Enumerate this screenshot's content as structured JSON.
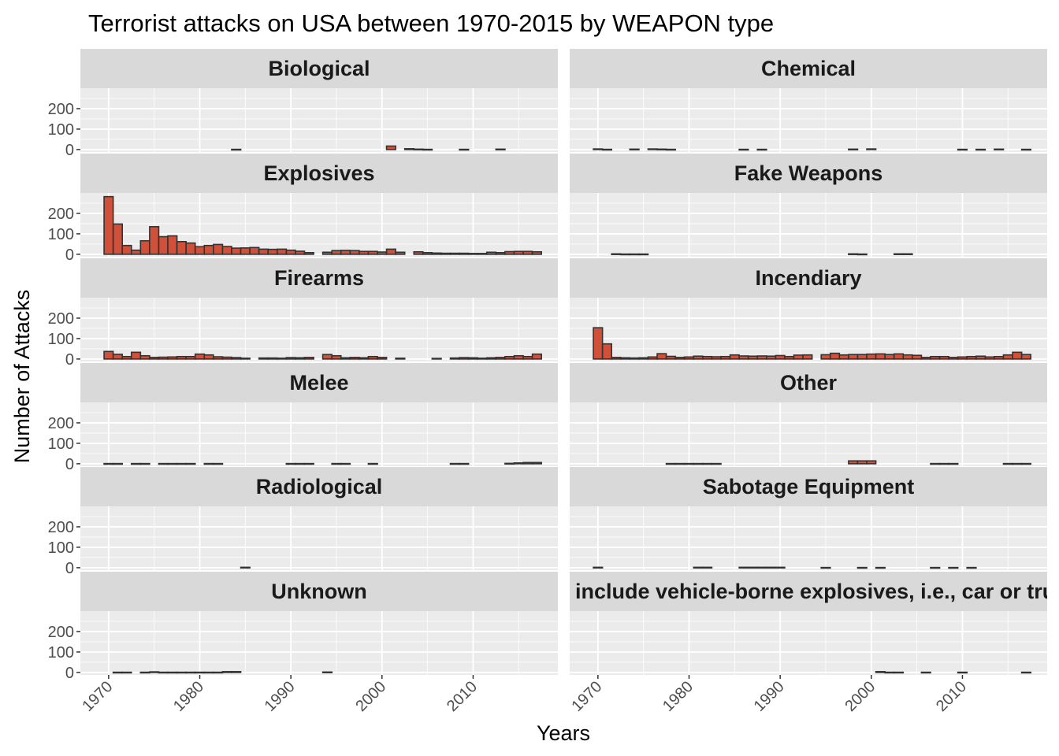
{
  "chart_data": {
    "type": "bar",
    "title": "Terrorist attacks on USA between 1970-2015 by WEAPON type",
    "xlabel": "Years",
    "ylabel": "Number of Attacks",
    "xlim": [
      1966.9,
      2019.3
    ],
    "ylim": [
      -12,
      300
    ],
    "x_ticks": [
      1970,
      1980,
      1990,
      2000,
      2010
    ],
    "y_ticks": [
      0,
      100,
      200
    ],
    "bin_width": 1,
    "facets": [
      {
        "name": "Biological",
        "values": {
          "1984": 1,
          "2001": 17,
          "2003": 4,
          "2004": 2,
          "2005": 1,
          "2009": 1,
          "2013": 2
        }
      },
      {
        "name": "Chemical",
        "values": {
          "1970": 3,
          "1971": 1,
          "1974": 2,
          "1976": 3,
          "1977": 2,
          "1978": 1,
          "1986": 1,
          "1988": 1,
          "1998": 2,
          "2000": 3,
          "2010": 1,
          "2012": 1,
          "2014": 2,
          "2017": 1
        }
      },
      {
        "name": "Explosives",
        "values": {
          "1970": 282,
          "1971": 148,
          "1972": 43,
          "1973": 20,
          "1974": 66,
          "1975": 135,
          "1976": 86,
          "1977": 90,
          "1978": 62,
          "1979": 55,
          "1980": 37,
          "1981": 43,
          "1982": 48,
          "1983": 38,
          "1984": 30,
          "1985": 31,
          "1986": 33,
          "1987": 25,
          "1988": 24,
          "1989": 25,
          "1990": 20,
          "1991": 15,
          "1992": 8,
          "1994": 10,
          "1995": 18,
          "1996": 19,
          "1997": 18,
          "1998": 14,
          "1999": 14,
          "2000": 11,
          "2001": 25,
          "2002": 10,
          "2004": 12,
          "2005": 8,
          "2006": 6,
          "2007": 5,
          "2008": 5,
          "2009": 5,
          "2010": 4,
          "2011": 4,
          "2012": 10,
          "2013": 8,
          "2014": 13,
          "2015": 14,
          "2016": 14,
          "2017": 12
        }
      },
      {
        "name": "Fake Weapons",
        "values": {
          "1972": 2,
          "1973": 1,
          "1974": 1,
          "1975": 1,
          "1998": 2,
          "1999": 1,
          "2003": 2,
          "2004": 2
        }
      },
      {
        "name": "Firearms",
        "values": {
          "1970": 37,
          "1971": 23,
          "1972": 12,
          "1973": 33,
          "1974": 16,
          "1975": 8,
          "1976": 9,
          "1977": 10,
          "1978": 12,
          "1979": 12,
          "1980": 24,
          "1981": 20,
          "1982": 11,
          "1983": 9,
          "1984": 7,
          "1985": 4,
          "1987": 5,
          "1988": 5,
          "1989": 4,
          "1990": 7,
          "1991": 6,
          "1992": 8,
          "1994": 22,
          "1995": 16,
          "1996": 6,
          "1997": 8,
          "1998": 6,
          "1999": 12,
          "2000": 8,
          "2002": 4,
          "2006": 3,
          "2008": 5,
          "2009": 7,
          "2010": 6,
          "2011": 4,
          "2012": 6,
          "2013": 8,
          "2014": 12,
          "2015": 16,
          "2016": 12,
          "2017": 24
        }
      },
      {
        "name": "Incendiary",
        "values": {
          "1970": 153,
          "1971": 74,
          "1972": 8,
          "1973": 6,
          "1974": 5,
          "1975": 6,
          "1976": 10,
          "1977": 26,
          "1978": 13,
          "1979": 8,
          "1980": 10,
          "1981": 14,
          "1982": 12,
          "1983": 11,
          "1984": 12,
          "1985": 20,
          "1986": 15,
          "1987": 14,
          "1988": 15,
          "1989": 14,
          "1990": 17,
          "1991": 12,
          "1992": 19,
          "1993": 20,
          "1995": 21,
          "1996": 28,
          "1997": 20,
          "1998": 22,
          "1999": 22,
          "2000": 24,
          "2001": 25,
          "2002": 22,
          "2003": 25,
          "2004": 20,
          "2005": 18,
          "2006": 8,
          "2007": 12,
          "2008": 12,
          "2009": 8,
          "2010": 10,
          "2011": 12,
          "2012": 14,
          "2013": 10,
          "2014": 12,
          "2015": 20,
          "2016": 33,
          "2017": 22
        }
      },
      {
        "name": "Melee",
        "values": {
          "1970": 1,
          "1971": 1,
          "1973": 1,
          "1974": 1,
          "1976": 1,
          "1977": 1,
          "1978": 1,
          "1979": 1,
          "1981": 1,
          "1982": 1,
          "1990": 1,
          "1991": 1,
          "1992": 1,
          "1995": 1,
          "1996": 1,
          "1999": 1,
          "2008": 1,
          "2009": 1,
          "2014": 2,
          "2015": 4,
          "2016": 6,
          "2017": 6
        }
      },
      {
        "name": "Other",
        "values": {
          "1978": 1,
          "1979": 1,
          "1980": 1,
          "1981": 1,
          "1982": 1,
          "1983": 1,
          "1998": 14,
          "1999": 14,
          "2000": 14,
          "2007": 1,
          "2008": 1,
          "2009": 1,
          "2015": 1,
          "2016": 1,
          "2017": 1
        }
      },
      {
        "name": "Radiological",
        "values": {
          "1985": 2
        }
      },
      {
        "name": "Sabotage Equipment",
        "values": {
          "1970": 2,
          "1981": 2,
          "1982": 2,
          "1986": 2,
          "1987": 2,
          "1988": 2,
          "1989": 2,
          "1990": 2,
          "1995": 1,
          "1999": 1,
          "2001": 1,
          "2007": 1,
          "2009": 1,
          "2011": 1
        }
      },
      {
        "name": "Unknown",
        "values": {
          "1971": 1,
          "1972": 1,
          "1974": 1,
          "1975": 3,
          "1976": 1,
          "1977": 1,
          "1978": 1,
          "1979": 1,
          "1980": 1,
          "1981": 1,
          "1982": 1,
          "1983": 4,
          "1984": 4,
          "1994": 2
        }
      },
      {
        "name": "include vehicle-borne explosives, i.e., car or truck bombs",
        "values": {
          "2001": 4,
          "2002": 1,
          "2003": 1,
          "2006": 1,
          "2010": 1,
          "2017": 1
        }
      }
    ]
  },
  "colors": {
    "bar_fill": "#d0503a",
    "bar_stroke": "#333333",
    "panel_bg": "#ebebeb",
    "strip_bg": "#d9d9d9",
    "grid": "#ffffff"
  }
}
